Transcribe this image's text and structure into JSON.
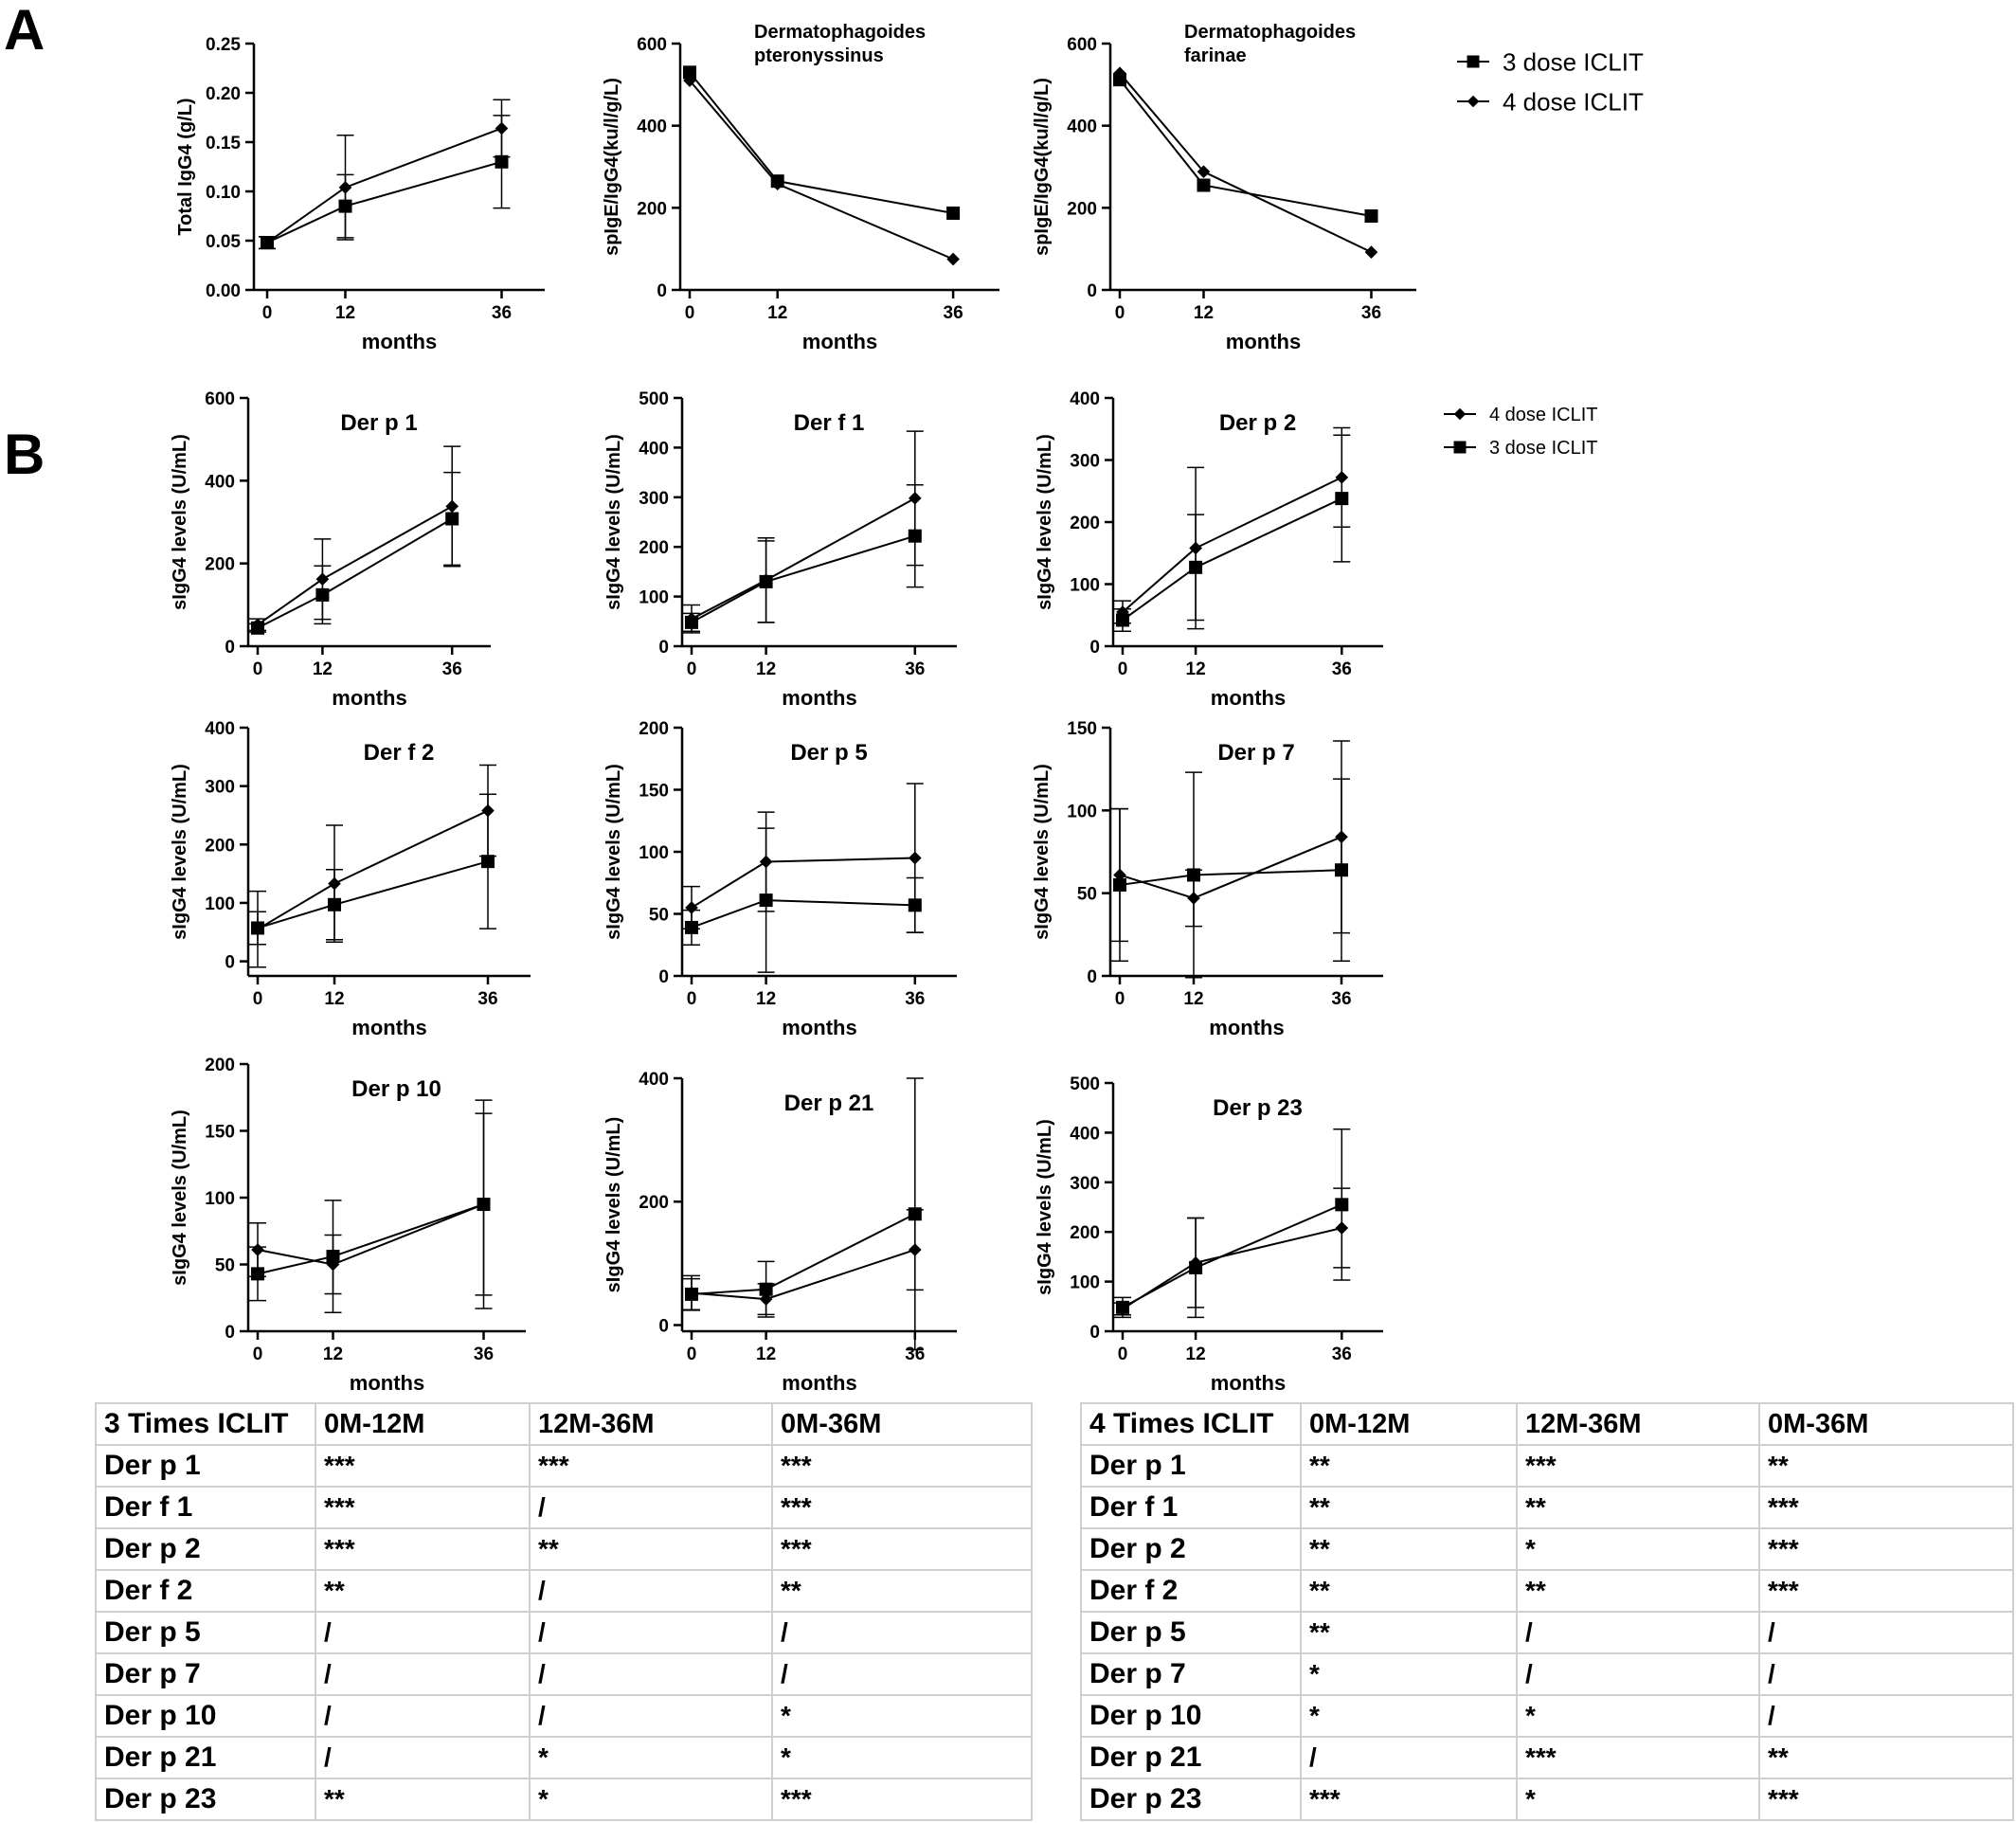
{
  "panel_labels": [
    "A",
    "B"
  ],
  "legend_A": [
    {
      "label": "3 dose ICLIT",
      "marker": "square"
    },
    {
      "label": "4 dose ICLIT",
      "marker": "diamond"
    }
  ],
  "legend_B": [
    {
      "label": "4 dose ICLIT",
      "marker": "diamond"
    },
    {
      "label": "3 dose ICLIT",
      "marker": "square"
    }
  ],
  "chart_data": [
    {
      "type": "line",
      "panel": "A",
      "title": "",
      "xlabel": "months",
      "ylabel": "Total  IgG4 (g/L)",
      "x": [
        0,
        12,
        36
      ],
      "xlim": [
        0,
        40
      ],
      "ylim": [
        0,
        0.25
      ],
      "yticks": [
        0.0,
        0.05,
        0.1,
        0.15,
        0.2,
        0.25
      ],
      "ydecimals": 2,
      "series": [
        {
          "name": "3 dose ICLIT",
          "marker": "square",
          "values": [
            0.048,
            0.085,
            0.13
          ],
          "err": [
            0.006,
            0.032,
            0.047
          ]
        },
        {
          "name": "4 dose ICLIT",
          "marker": "diamond",
          "values": [
            0.048,
            0.104,
            0.164
          ],
          "err": [
            0.006,
            0.053,
            0.029
          ]
        }
      ]
    },
    {
      "type": "line",
      "panel": "A",
      "title": "Dermatophagoides\npteronyssinus",
      "xlabel": "months",
      "ylabel": "spIgE/IgG4(ku/l/g/L)",
      "x": [
        0,
        12,
        36
      ],
      "xlim": [
        0,
        40
      ],
      "ylim": [
        0,
        600
      ],
      "yticks": [
        0,
        200,
        400,
        600
      ],
      "series": [
        {
          "name": "3 dose ICLIT",
          "marker": "square",
          "values": [
            530,
            265,
            187
          ]
        },
        {
          "name": "4 dose ICLIT",
          "marker": "diamond",
          "values": [
            510,
            258,
            75
          ]
        }
      ]
    },
    {
      "type": "line",
      "panel": "A",
      "title": "Dermatophagoides\nfarinae",
      "xlabel": "months",
      "ylabel": "spIgE/IgG4(ku/l/g/L)",
      "x": [
        0,
        12,
        36
      ],
      "xlim": [
        0,
        40
      ],
      "ylim": [
        0,
        600
      ],
      "yticks": [
        0,
        200,
        400,
        600
      ],
      "series": [
        {
          "name": "3 dose ICLIT",
          "marker": "square",
          "values": [
            512,
            255,
            180
          ]
        },
        {
          "name": "4 dose ICLIT",
          "marker": "diamond",
          "values": [
            528,
            288,
            92
          ]
        }
      ]
    },
    {
      "type": "line",
      "panel": "B",
      "title": "Der p 1",
      "xlabel": "months",
      "ylabel": "sIgG4 levels (U/mL)",
      "x": [
        0,
        12,
        36
      ],
      "xlim": [
        0,
        40
      ],
      "ylim": [
        0,
        600
      ],
      "yticks": [
        0,
        200,
        400,
        600
      ],
      "series": [
        {
          "name": "4 dose ICLIT",
          "marker": "diamond",
          "values": [
            52,
            162,
            338
          ],
          "err": [
            14,
            97,
            145
          ]
        },
        {
          "name": "3 dose ICLIT",
          "marker": "square",
          "values": [
            44,
            124,
            308
          ],
          "err": [
            10,
            70,
            112
          ]
        }
      ]
    },
    {
      "type": "line",
      "panel": "B",
      "title": "Der f 1",
      "xlabel": "months",
      "ylabel": "sIgG4 levels (U/mL)",
      "x": [
        0,
        12,
        36
      ],
      "xlim": [
        0,
        40
      ],
      "ylim": [
        0,
        500
      ],
      "yticks": [
        0,
        100,
        200,
        300,
        400,
        500
      ],
      "series": [
        {
          "name": "4 dose ICLIT",
          "marker": "diamond",
          "values": [
            55,
            133,
            298
          ],
          "err": [
            28,
            85,
            135
          ]
        },
        {
          "name": "3 dose ICLIT",
          "marker": "square",
          "values": [
            48,
            130,
            222
          ],
          "err": [
            18,
            82,
            103
          ]
        }
      ]
    },
    {
      "type": "line",
      "panel": "B",
      "title": "Der p 2",
      "xlabel": "months",
      "ylabel": "sIgG4 levels (U/mL)",
      "x": [
        0,
        12,
        36
      ],
      "xlim": [
        0,
        40
      ],
      "ylim": [
        0,
        400
      ],
      "yticks": [
        0,
        100,
        200,
        300,
        400
      ],
      "series": [
        {
          "name": "4 dose ICLIT",
          "marker": "diamond",
          "values": [
            55,
            158,
            272
          ],
          "err": [
            18,
            130,
            80
          ]
        },
        {
          "name": "3 dose ICLIT",
          "marker": "square",
          "values": [
            42,
            127,
            238
          ],
          "err": [
            18,
            85,
            102
          ]
        }
      ]
    },
    {
      "type": "line",
      "panel": "B",
      "title": "Der f 2",
      "xlabel": "months",
      "ylabel": "sIgG4 levels (U/mL)",
      "x": [
        0,
        12,
        36
      ],
      "xlim": [
        0,
        40
      ],
      "ylim": [
        -25,
        400
      ],
      "yticks": [
        0,
        100,
        200,
        300,
        400
      ],
      "series": [
        {
          "name": "4 dose ICLIT",
          "marker": "diamond",
          "values": [
            55,
            133,
            258
          ],
          "err": [
            65,
            100,
            78
          ]
        },
        {
          "name": "3 dose ICLIT",
          "marker": "square",
          "values": [
            57,
            97,
            171
          ],
          "err": [
            28,
            60,
            115
          ]
        }
      ]
    },
    {
      "type": "line",
      "panel": "B",
      "title": "Der p 5",
      "xlabel": "months",
      "ylabel": "sIgG4 levels (U/mL)",
      "x": [
        0,
        12,
        36
      ],
      "xlim": [
        0,
        40
      ],
      "ylim": [
        0,
        200
      ],
      "yticks": [
        0,
        50,
        100,
        150,
        200
      ],
      "series": [
        {
          "name": "4 dose ICLIT",
          "marker": "diamond",
          "values": [
            55,
            92,
            95
          ],
          "err": [
            17,
            40,
            60
          ]
        },
        {
          "name": "3 dose ICLIT",
          "marker": "square",
          "values": [
            39,
            61,
            57
          ],
          "err": [
            14,
            58,
            22
          ]
        }
      ]
    },
    {
      "type": "line",
      "panel": "B",
      "title": "Der p 7",
      "xlabel": "months",
      "ylabel": "sIgG4 levels (U/mL)",
      "x": [
        0,
        12,
        36
      ],
      "xlim": [
        0,
        40
      ],
      "ylim": [
        0,
        150
      ],
      "yticks": [
        0,
        50,
        100,
        150
      ],
      "series": [
        {
          "name": "4 dose ICLIT",
          "marker": "diamond",
          "values": [
            61,
            47,
            84
          ],
          "err": [
            40,
            17,
            58
          ]
        },
        {
          "name": "3 dose ICLIT",
          "marker": "square",
          "values": [
            55,
            61,
            64
          ],
          "err": [
            46,
            62,
            55
          ]
        }
      ]
    },
    {
      "type": "line",
      "panel": "B",
      "title": "Der p 10",
      "xlabel": "months",
      "ylabel": "sIgG4 levels (U/mL)",
      "x": [
        0,
        12,
        36
      ],
      "xlim": [
        0,
        40
      ],
      "ylim": [
        0,
        200
      ],
      "yticks": [
        0,
        50,
        100,
        150,
        200
      ],
      "series": [
        {
          "name": "4 dose ICLIT",
          "marker": "diamond",
          "values": [
            61,
            50,
            95
          ],
          "err": [
            20,
            22,
            78
          ]
        },
        {
          "name": "3 dose ICLIT",
          "marker": "square",
          "values": [
            43,
            56,
            95
          ],
          "err": [
            20,
            42,
            68
          ]
        }
      ]
    },
    {
      "type": "line",
      "panel": "B",
      "title": "Der p 21",
      "xlabel": "months",
      "ylabel": "sIgG4 levels (U/mL)",
      "x": [
        0,
        12,
        36
      ],
      "xlim": [
        0,
        40
      ],
      "ylim": [
        -10,
        400
      ],
      "yticks": [
        0,
        200,
        400
      ],
      "series": [
        {
          "name": "4 dose ICLIT",
          "marker": "diamond",
          "values": [
            52,
            42,
            122
          ],
          "err": [
            28,
            25,
            65
          ]
        },
        {
          "name": "3 dose ICLIT",
          "marker": "square",
          "values": [
            50,
            58,
            180
          ],
          "err": [
            25,
            45,
            220
          ]
        }
      ]
    },
    {
      "type": "line",
      "panel": "B",
      "title": "Der p 23",
      "xlabel": "months",
      "ylabel": "sIgG4 levels (U/mL)",
      "x": [
        0,
        12,
        36
      ],
      "xlim": [
        0,
        40
      ],
      "ylim": [
        0,
        500
      ],
      "yticks": [
        0,
        100,
        200,
        300,
        400,
        500
      ],
      "series": [
        {
          "name": "4 dose ICLIT",
          "marker": "diamond",
          "values": [
            45,
            138,
            208
          ],
          "err": [
            12,
            90,
            80
          ]
        },
        {
          "name": "3 dose ICLIT",
          "marker": "square",
          "values": [
            48,
            128,
            255
          ],
          "err": [
            20,
            100,
            152
          ]
        }
      ]
    },
    {
      "type": "table",
      "title": "3 Times ICLIT",
      "columns": [
        "3 Times ICLIT",
        "0M-12M",
        "12M-36M",
        "0M-36M"
      ],
      "rows": [
        [
          "Der p 1",
          "***",
          "***",
          "***"
        ],
        [
          "Der f 1",
          "***",
          "/",
          "***"
        ],
        [
          "Der p 2",
          "***",
          "**",
          "***"
        ],
        [
          "Der f 2",
          "**",
          "/",
          "**"
        ],
        [
          "Der p 5",
          "/",
          "/",
          "/"
        ],
        [
          "Der p 7",
          "/",
          "/",
          "/"
        ],
        [
          "Der p 10",
          "/",
          "/",
          "*"
        ],
        [
          "Der p 21",
          "/",
          "*",
          "*"
        ],
        [
          "Der p 23",
          "**",
          "*",
          "***"
        ]
      ]
    },
    {
      "type": "table",
      "title": "4 Times ICLIT",
      "columns": [
        "4 Times ICLIT",
        "0M-12M",
        "12M-36M",
        "0M-36M"
      ],
      "rows": [
        [
          "Der p 1",
          "**",
          "***",
          "**"
        ],
        [
          "Der f 1",
          "**",
          "**",
          "***"
        ],
        [
          "Der p 2",
          "**",
          "*",
          "***"
        ],
        [
          "Der f 2",
          "**",
          "**",
          "***"
        ],
        [
          "Der p 5",
          "**",
          "/",
          "/"
        ],
        [
          "Der p 7",
          "*",
          "/",
          "/"
        ],
        [
          "Der p 10",
          "*",
          "*",
          "/"
        ],
        [
          "Der p 21",
          "/",
          "***",
          "**"
        ],
        [
          "Der p 23",
          "***",
          "*",
          "***"
        ]
      ]
    }
  ]
}
